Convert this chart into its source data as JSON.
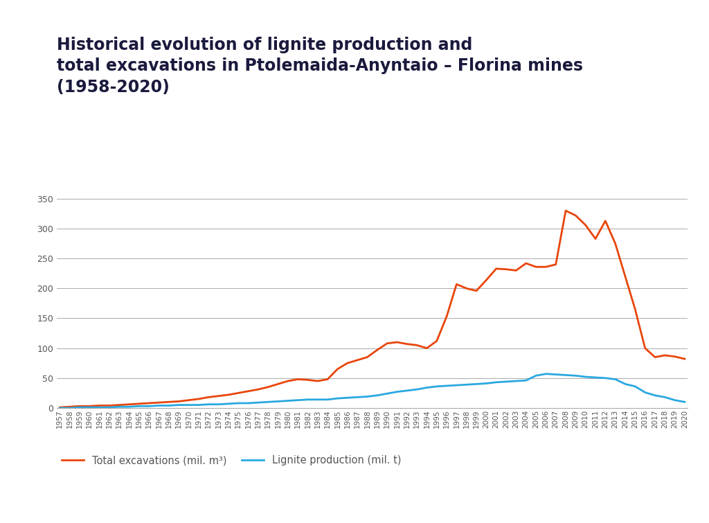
{
  "title": "Historical evolution of lignite production and\ntotal excavations in Ptolemaida-Anyntaio – Florina mines\n(1958-2020)",
  "title_color": "#1a1a3e",
  "title_fontsize": 17,
  "legend_labels": [
    "Total excavations (mil. m³)",
    "Lignite production (mil. t)"
  ],
  "excavations_color": "#e8450a",
  "lignite_color": "#29a8e0",
  "background_color": "#ffffff",
  "ylim": [
    0,
    350
  ],
  "yticks": [
    0,
    50,
    100,
    150,
    200,
    250,
    300,
    350
  ],
  "years": [
    1957,
    1958,
    1959,
    1960,
    1961,
    1962,
    1963,
    1964,
    1965,
    1966,
    1967,
    1968,
    1969,
    1970,
    1971,
    1972,
    1973,
    1974,
    1975,
    1976,
    1977,
    1978,
    1979,
    1980,
    1981,
    1982,
    1983,
    1984,
    1985,
    1986,
    1987,
    1988,
    1989,
    1990,
    1991,
    1992,
    1993,
    1994,
    1995,
    1996,
    1997,
    1998,
    1999,
    2000,
    2001,
    2002,
    2003,
    2004,
    2005,
    2006,
    2007,
    2008,
    2009,
    2010,
    2011,
    2012,
    2013,
    2014,
    2015,
    2016,
    2017,
    2018,
    2019,
    2020
  ],
  "excavations": [
    1,
    2,
    3,
    3,
    4,
    4,
    5,
    6,
    7,
    8,
    9,
    10,
    11,
    13,
    15,
    18,
    20,
    22,
    25,
    28,
    31,
    35,
    40,
    45,
    48,
    47,
    45,
    48,
    65,
    75,
    80,
    85,
    97,
    108,
    110,
    107,
    105,
    100,
    112,
    153,
    207,
    200,
    196,
    214,
    233,
    232,
    230,
    242,
    236,
    236,
    240,
    330,
    322,
    306,
    283,
    313,
    275,
    220,
    165,
    100,
    85,
    88,
    86,
    82
  ],
  "lignite": [
    0,
    0,
    1,
    1,
    1,
    1,
    2,
    2,
    3,
    3,
    4,
    4,
    5,
    5,
    5,
    6,
    6,
    7,
    8,
    8,
    9,
    10,
    11,
    12,
    13,
    14,
    14,
    14,
    16,
    17,
    18,
    19,
    21,
    24,
    27,
    29,
    31,
    34,
    36,
    37,
    38,
    39,
    40,
    41,
    43,
    44,
    45,
    46,
    54,
    57,
    56,
    55,
    54,
    52,
    51,
    50,
    48,
    40,
    36,
    26,
    21,
    18,
    13,
    10
  ]
}
